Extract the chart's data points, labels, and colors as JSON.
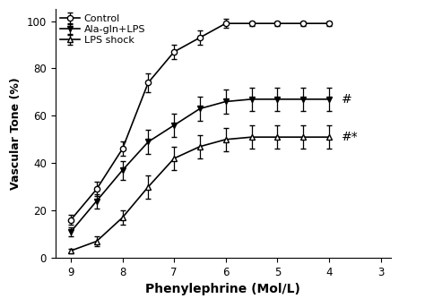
{
  "x": [
    9,
    8.5,
    8,
    7.5,
    7,
    6.5,
    6,
    5.5,
    5,
    4.5,
    4
  ],
  "control_y": [
    16,
    29,
    46,
    74,
    87,
    93,
    99,
    99,
    99,
    99,
    99
  ],
  "control_err": [
    2,
    3,
    3,
    4,
    3,
    3,
    2,
    1,
    1,
    1,
    1
  ],
  "ala_gln_y": [
    11,
    24,
    37,
    49,
    56,
    63,
    66,
    67,
    67,
    67,
    67
  ],
  "ala_gln_err": [
    2,
    3,
    4,
    5,
    5,
    5,
    5,
    5,
    5,
    5,
    5
  ],
  "lps_y": [
    3,
    7,
    17,
    30,
    42,
    47,
    50,
    51,
    51,
    51,
    51
  ],
  "lps_err": [
    1,
    2,
    3,
    5,
    5,
    5,
    5,
    5,
    5,
    5,
    5
  ],
  "xlabel": "Phenylephrine (Mol/L)",
  "ylabel": "Vascular Tone (%)",
  "xlim": [
    9.3,
    2.8
  ],
  "ylim": [
    0,
    105
  ],
  "xticks": [
    9,
    8,
    7,
    6,
    5,
    4,
    3
  ],
  "yticks": [
    0,
    20,
    40,
    60,
    80,
    100
  ],
  "legend_labels": [
    "Control",
    "Ala-gln+LPS",
    "LPS shock"
  ],
  "annotation_ala": "#",
  "annotation_lps": "#*",
  "line_color": "#000000",
  "bg_color": "#ffffff"
}
